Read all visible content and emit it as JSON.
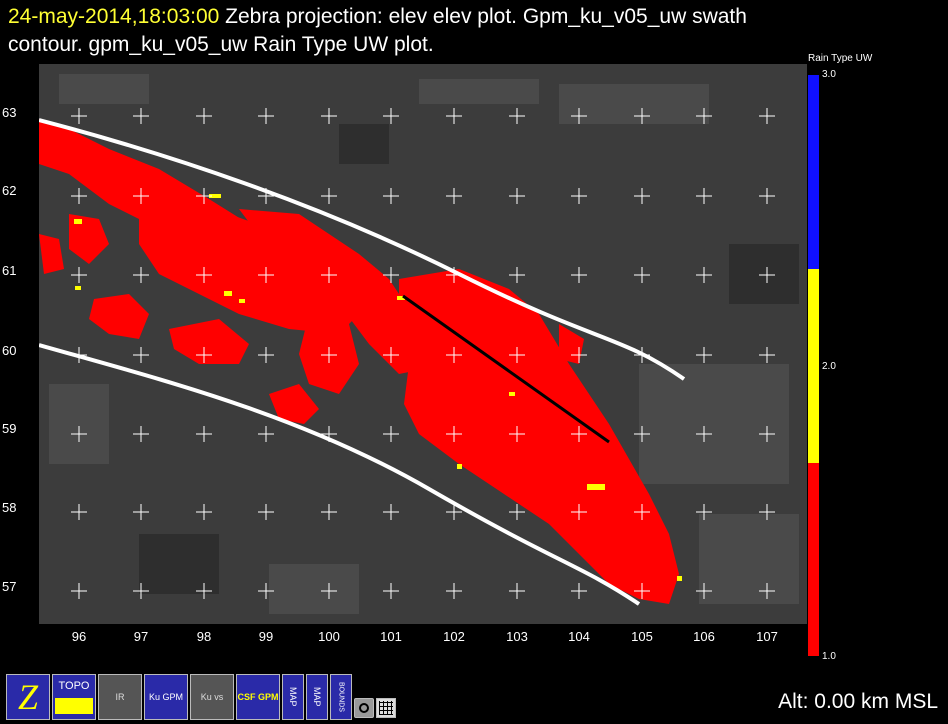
{
  "header": {
    "timestamp": "24-may-2014,18:03:00",
    "line1_rest": "Zebra projection: elev elev  plot.  Gpm_ku_v05_uw swath",
    "line2": "contour.  gpm_ku_v05_uw Rain Type UW  plot."
  },
  "axes": {
    "y_ticks": [
      "63",
      "62",
      "61",
      "60",
      "59",
      "58",
      "57"
    ],
    "x_ticks": [
      "96",
      "97",
      "98",
      "99",
      "100",
      "101",
      "102",
      "103",
      "104",
      "105",
      "106",
      "107"
    ]
  },
  "colorbar": {
    "label": "Rain Type UW",
    "ticks": [
      "3.0",
      "2.0",
      "1.0"
    ],
    "colors": {
      "blue": "#1010ff",
      "yellow": "#ffff00",
      "red": "#ff0000"
    }
  },
  "toolbar": {
    "buttons": [
      {
        "name": "zebra-button",
        "text": "Z"
      },
      {
        "name": "topo-button",
        "text": "TOPO"
      },
      {
        "name": "ir-overlay-button",
        "text": "IR"
      },
      {
        "name": "ku-gpm-button",
        "text": "Ku GPM"
      },
      {
        "name": "ku-vs-button",
        "text": "Ku vs"
      },
      {
        "name": "csf-gpm-button",
        "text": "CSF GPM"
      },
      {
        "name": "map-button-1",
        "text": "MAP"
      },
      {
        "name": "map-button-2",
        "text": "MAP"
      },
      {
        "name": "bounds-button",
        "text": "BOUNDS"
      }
    ]
  },
  "status": {
    "altitude": "Alt: 0.00 km MSL"
  },
  "colors": {
    "background": "#000000",
    "terrain": "#3c3c3c",
    "rain": "#ff0000",
    "swath": "#ffffff"
  }
}
